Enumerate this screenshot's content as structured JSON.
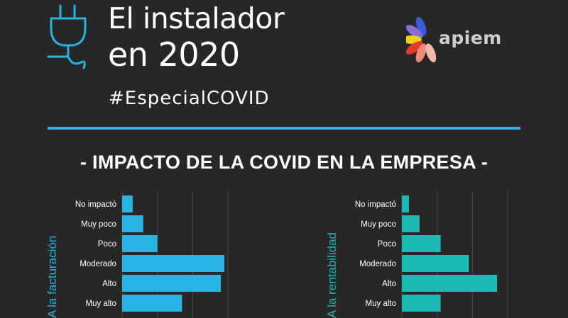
{
  "header": {
    "title_line1": "El instalador",
    "title_line2": "en 2020",
    "hashtag": "#EspecialCOVID",
    "logo_text": "apiem"
  },
  "section_title": "- IMPACTO DE LA COVID EN LA EMPRESA -",
  "colors": {
    "background": "#272727",
    "accent_blue": "#29b3e3",
    "bar_left": "#29b3e3",
    "bar_right": "#1cb9b5",
    "axis_label_left": "#29b3e3",
    "axis_label_right": "#1cb9b5"
  },
  "icons": [
    "plug-icon",
    "apiem-logo"
  ],
  "chart_data": [
    {
      "type": "bar",
      "orientation": "horizontal",
      "ylabel": "A la facturación",
      "categories": [
        "No impactó",
        "Muy poco",
        "Poco",
        "Moderado",
        "Alto",
        "Muy alto"
      ],
      "values": [
        3,
        6,
        10,
        29,
        28,
        17
      ],
      "xlim": [
        0,
        40
      ],
      "grid": true
    },
    {
      "type": "bar",
      "orientation": "horizontal",
      "ylabel": "A la rentabilidad",
      "categories": [
        "No impactó",
        "Muy poco",
        "Poco",
        "Moderado",
        "Alto",
        "Muy alto"
      ],
      "values": [
        2,
        5,
        11,
        19,
        27,
        11
      ],
      "xlim": [
        0,
        40
      ],
      "grid": true
    }
  ]
}
